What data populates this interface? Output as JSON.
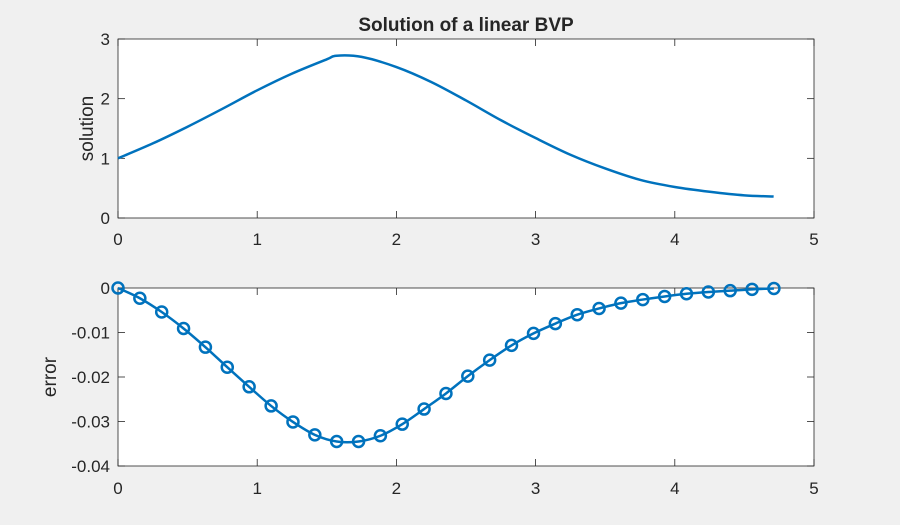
{
  "background_color": "#f0f0f0",
  "line_color": "#0072bd",
  "chart_data": [
    {
      "type": "line",
      "title": "Solution of a linear BVP",
      "xlabel": "",
      "ylabel": "solution",
      "xlim": [
        0,
        5
      ],
      "ylim": [
        0,
        3
      ],
      "xticks": [
        "0",
        "1",
        "2",
        "3",
        "4",
        "5"
      ],
      "yticks": [
        "0",
        "1",
        "2",
        "3"
      ],
      "grid": false,
      "series": [
        {
          "x": [
            0,
            0.25,
            0.5,
            0.75,
            1.0,
            1.25,
            1.5,
            1.57,
            1.75,
            2.0,
            2.25,
            2.5,
            2.75,
            3.0,
            3.25,
            3.5,
            3.75,
            4.0,
            4.25,
            4.5,
            4.71
          ],
          "y": [
            1.0,
            1.25,
            1.53,
            1.83,
            2.14,
            2.42,
            2.66,
            2.72,
            2.7,
            2.53,
            2.28,
            1.97,
            1.64,
            1.34,
            1.06,
            0.83,
            0.64,
            0.52,
            0.44,
            0.38,
            0.36
          ]
        }
      ]
    },
    {
      "type": "line",
      "title": "",
      "xlabel": "",
      "ylabel": "error",
      "xlim": [
        0,
        5
      ],
      "ylim": [
        -0.04,
        0
      ],
      "xticks": [
        "0",
        "1",
        "2",
        "3",
        "4",
        "5"
      ],
      "yticks": [
        "0",
        "-0.01",
        "-0.02",
        "-0.03",
        "-0.04"
      ],
      "ytick_values": [
        0,
        -0.01,
        -0.02,
        -0.03,
        -0.04
      ],
      "grid": false,
      "marker": "circle",
      "series": [
        {
          "x": [
            0,
            0.157,
            0.314,
            0.471,
            0.628,
            0.785,
            0.942,
            1.1,
            1.257,
            1.414,
            1.571,
            1.728,
            1.885,
            2.042,
            2.199,
            2.356,
            2.513,
            2.67,
            2.827,
            2.985,
            3.142,
            3.299,
            3.456,
            3.613,
            3.77,
            3.927,
            4.084,
            4.241,
            4.398,
            4.555,
            4.712
          ],
          "y": [
            0,
            -0.0023,
            -0.0054,
            -0.0091,
            -0.0133,
            -0.0178,
            -0.0222,
            -0.0265,
            -0.0301,
            -0.033,
            -0.0345,
            -0.0345,
            -0.0332,
            -0.0306,
            -0.0272,
            -0.0237,
            -0.0198,
            -0.0162,
            -0.0129,
            -0.0102,
            -0.008,
            -0.006,
            -0.0046,
            -0.0034,
            -0.0026,
            -0.0019,
            -0.0013,
            -0.0009,
            -0.0006,
            -0.0003,
            -0.0001
          ]
        }
      ]
    }
  ]
}
